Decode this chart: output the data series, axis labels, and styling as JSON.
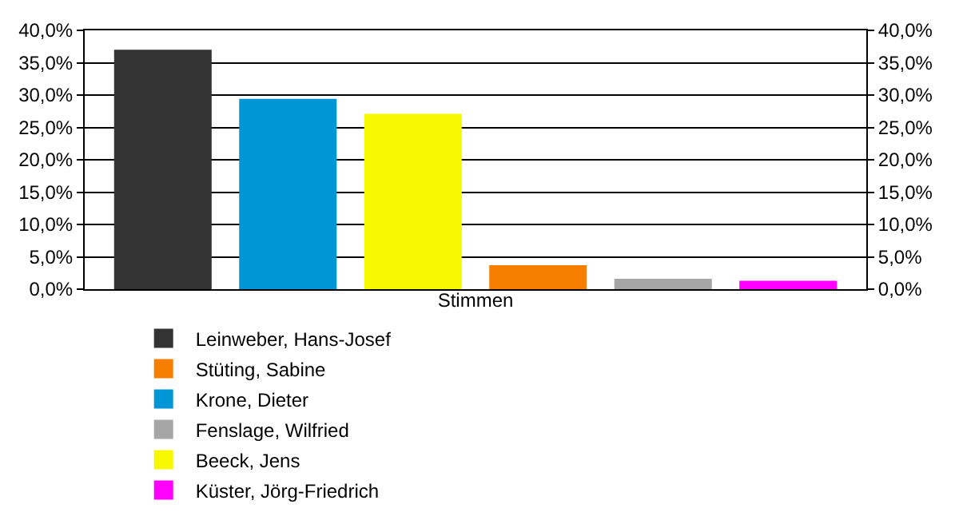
{
  "chart_data": {
    "type": "bar",
    "xlabel": "Stimmen",
    "categories": [
      null
    ],
    "series": [
      {
        "name": "Leinweber, Hans-Josef",
        "color": "#333333",
        "values": [
          37.0
        ]
      },
      {
        "name": "Krone, Dieter",
        "color": "#0096d6",
        "values": [
          29.4
        ]
      },
      {
        "name": "Beeck, Jens",
        "color": "#f7f700",
        "values": [
          27.1
        ]
      },
      {
        "name": "Stüting, Sabine",
        "color": "#f77f00",
        "values": [
          3.7
        ]
      },
      {
        "name": "Fenslage, Wilfried",
        "color": "#a6a6a6",
        "values": [
          1.6
        ]
      },
      {
        "name": "Küster, Jörg-Friedrich",
        "color": "#ff00ff",
        "values": [
          1.3
        ]
      }
    ],
    "ylim": [
      0,
      40
    ],
    "yticks": [
      {
        "value": 0,
        "label": "0,0%"
      },
      {
        "value": 5,
        "label": "5,0%"
      },
      {
        "value": 10,
        "label": "10,0%"
      },
      {
        "value": 15,
        "label": "15,0%"
      },
      {
        "value": 20,
        "label": "20,0%"
      },
      {
        "value": 25,
        "label": "25,0%"
      },
      {
        "value": 30,
        "label": "30,0%"
      },
      {
        "value": 35,
        "label": "35,0%"
      },
      {
        "value": 40,
        "label": "40,0%"
      }
    ],
    "y2lim": [
      0,
      40
    ],
    "y2ticks": [
      {
        "value": 0,
        "label": "0,0%"
      },
      {
        "value": 5,
        "label": "5,0%"
      },
      {
        "value": 10,
        "label": "10,0%"
      },
      {
        "value": 15,
        "label": "15,0%"
      },
      {
        "value": 20,
        "label": "20,0%"
      },
      {
        "value": 25,
        "label": "25,0%"
      },
      {
        "value": 30,
        "label": "30,0%"
      },
      {
        "value": 35,
        "label": "35,0%"
      },
      {
        "value": 40,
        "label": "40,0%"
      }
    ],
    "grid": "y",
    "legend": "bottom"
  }
}
